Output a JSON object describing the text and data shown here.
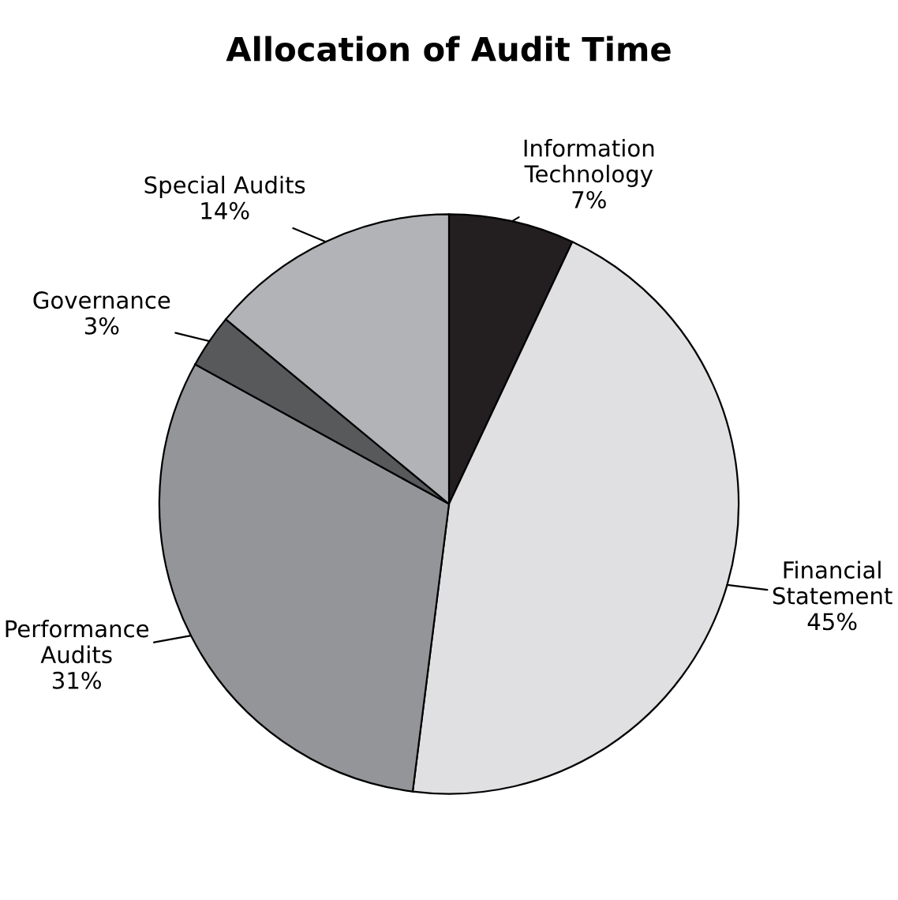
{
  "chart_data": {
    "type": "pie",
    "title": "Allocation of Audit Time",
    "categories": [
      "Information\nTechnology",
      "Financial\nStatement",
      "Performance\nAudits",
      "Governance",
      "Special Audits"
    ],
    "values": [
      7,
      45,
      31,
      3,
      14
    ],
    "value_labels": [
      "7%",
      "45%",
      "31%",
      "3%",
      "14%"
    ],
    "colors": [
      "#231f20",
      "#e0e0e2",
      "#939598",
      "#58595b",
      "#b1b3b6"
    ]
  }
}
